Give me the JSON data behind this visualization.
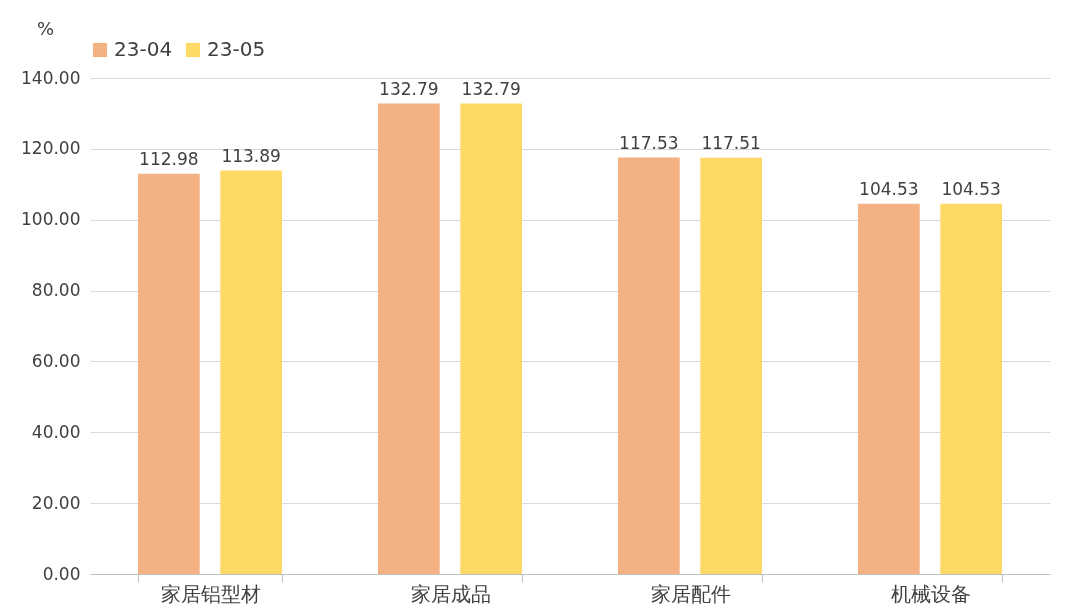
{
  "chart_data": {
    "type": "bar",
    "ylabel": "%",
    "categories": [
      "家居铝型材",
      "家居成品",
      "家居配件",
      "机械设备"
    ],
    "series": [
      {
        "name": "23-04",
        "color": "#f4b183",
        "values": [
          112.98,
          132.79,
          117.53,
          104.53
        ]
      },
      {
        "name": "23-05",
        "color": "#ffd966",
        "values": [
          113.89,
          132.79,
          117.51,
          104.53
        ]
      }
    ],
    "ylim": [
      0,
      140
    ],
    "yticks": [
      {
        "value": 0,
        "label": "0.00"
      },
      {
        "value": 20,
        "label": "20.00"
      },
      {
        "value": 40,
        "label": "40.00"
      },
      {
        "value": 60,
        "label": "60.00"
      },
      {
        "value": 80,
        "label": "80.00"
      },
      {
        "value": 100,
        "label": "100.00"
      },
      {
        "value": 120,
        "label": "120.00"
      },
      {
        "value": 140,
        "label": "140.00"
      }
    ],
    "grid": "y",
    "legend": "top",
    "data_labels": true
  }
}
